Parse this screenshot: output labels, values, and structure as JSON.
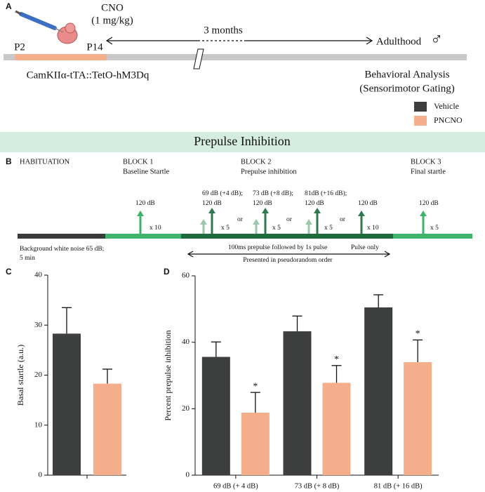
{
  "panel_a": {
    "label": "A",
    "drug": "CNO",
    "dose": "(1 mg/kg)",
    "start": "P2",
    "end": "P14",
    "interval": "3 months",
    "adult": "Adulthood",
    "sex": "♂",
    "genotype": "CamKIIα-tTA::TetO-hM3Dq",
    "analysis": [
      "Behavioral Analysis",
      "(Sensorimotor Gating)"
    ]
  },
  "banner": "Prepulse Inhibition",
  "panel_b": {
    "label": "B",
    "phases": [
      [
        "HABITUATION"
      ],
      [
        "BLOCK 1",
        "Baseline Startle"
      ],
      [
        "BLOCK 2",
        "Prepulse inhibition"
      ],
      [
        "BLOCK 3",
        "Final startle"
      ]
    ],
    "stimuli": [
      {
        "labels": [
          "120 dB"
        ],
        "repeat": "x 10"
      },
      {
        "labels": [
          "69 dB (+4 dB);",
          "120 dB"
        ],
        "repeat": "x 5"
      },
      {
        "labels": [
          "73 dB (+8 dB);",
          "120 dB"
        ],
        "repeat": "x 5"
      },
      {
        "labels": [
          "81dB (+16 dB);",
          "120 dB"
        ],
        "repeat": "x 5"
      },
      {
        "labels": [
          "120 dB"
        ],
        "repeat": "x 10"
      },
      {
        "labels": [
          "120 dB"
        ],
        "repeat": "x 5"
      }
    ],
    "separator": "or",
    "notes": {
      "background": [
        "Background white noise 65 dB;",
        "5 min"
      ],
      "prepulse": "100ms prepulse followed by 1s pulse",
      "pulse_only": "Pulse only",
      "order": "Presented in pseudorandom order"
    }
  },
  "chart_data": [
    {
      "type": "bar",
      "panel": "C",
      "ylabel": "Basal startle (a.u.)",
      "categories": [
        null
      ],
      "series": [
        {
          "name": "Vehicle",
          "color": "#3d3f3e",
          "values": [
            28.3
          ],
          "errors": [
            5.2
          ]
        },
        {
          "name": "PNCNO",
          "color": "#f5ae8b",
          "values": [
            18.3
          ],
          "errors": [
            2.9
          ]
        }
      ],
      "ylim": [
        0,
        40
      ],
      "yticks": [
        0,
        10,
        20,
        30,
        40
      ]
    },
    {
      "type": "bar",
      "panel": "D",
      "ylabel": "Percent prepulse inhibition",
      "categories": [
        "69 dB (+ 4 dB)",
        "73 dB (+ 8 dB)",
        "81 dB (+ 16 dB)"
      ],
      "series": [
        {
          "color": "#3d3f3e",
          "values": [
            35.6,
            43.3,
            50.5
          ],
          "errors": [
            4.5,
            4.6,
            3.8
          ]
        },
        {
          "color": "#f5ae8b",
          "values": [
            18.8,
            27.8,
            34
          ],
          "errors": [
            6.1,
            5.2,
            6.7
          ],
          "annotations": [
            "*",
            "*",
            "*"
          ]
        }
      ],
      "ylim": [
        0,
        60
      ],
      "yticks": [
        0,
        20,
        40,
        60
      ]
    }
  ]
}
